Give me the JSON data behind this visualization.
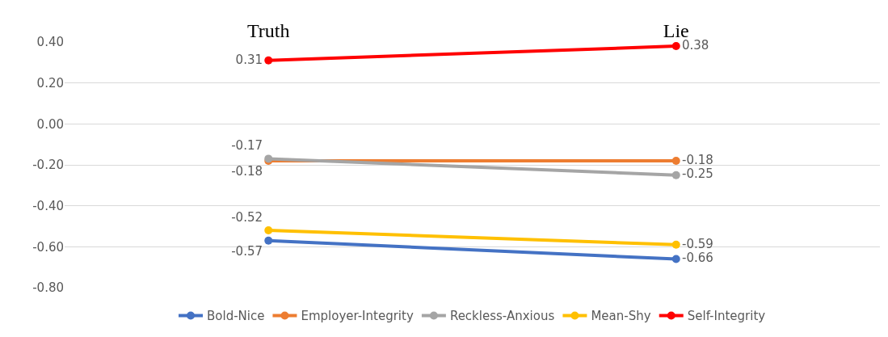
{
  "chart_data": {
    "type": "line",
    "categories": [
      "Truth",
      "Lie"
    ],
    "series": [
      {
        "name": "Bold-Nice",
        "color": "#4472c4",
        "values": [
          -0.57,
          -0.66
        ]
      },
      {
        "name": "Employer-Integrity",
        "color": "#ed7d31",
        "values": [
          -0.18,
          -0.18
        ]
      },
      {
        "name": "Reckless-Anxious",
        "color": "#a5a5a5",
        "values": [
          -0.17,
          -0.25
        ]
      },
      {
        "name": "Mean-Shy",
        "color": "#ffc000",
        "values": [
          -0.52,
          -0.59
        ]
      },
      {
        "name": "Self-Integrity",
        "color": "#ff0000",
        "values": [
          0.31,
          0.38
        ]
      }
    ],
    "ylim": [
      -0.8,
      0.4
    ],
    "yticks": [
      {
        "value": 0.4,
        "label": "0.40"
      },
      {
        "value": 0.2,
        "label": "0.20"
      },
      {
        "value": 0,
        "label": "0.00"
      },
      {
        "value": -0.2,
        "label": "-0.20"
      },
      {
        "value": -0.4,
        "label": "-0.40"
      },
      {
        "value": -0.6,
        "label": "-0.60"
      },
      {
        "value": -0.8,
        "label": "-0.80"
      }
    ],
    "grid": "y",
    "legend": "bottom",
    "marker": "circle",
    "line_style": "solid",
    "data_labels": true
  }
}
